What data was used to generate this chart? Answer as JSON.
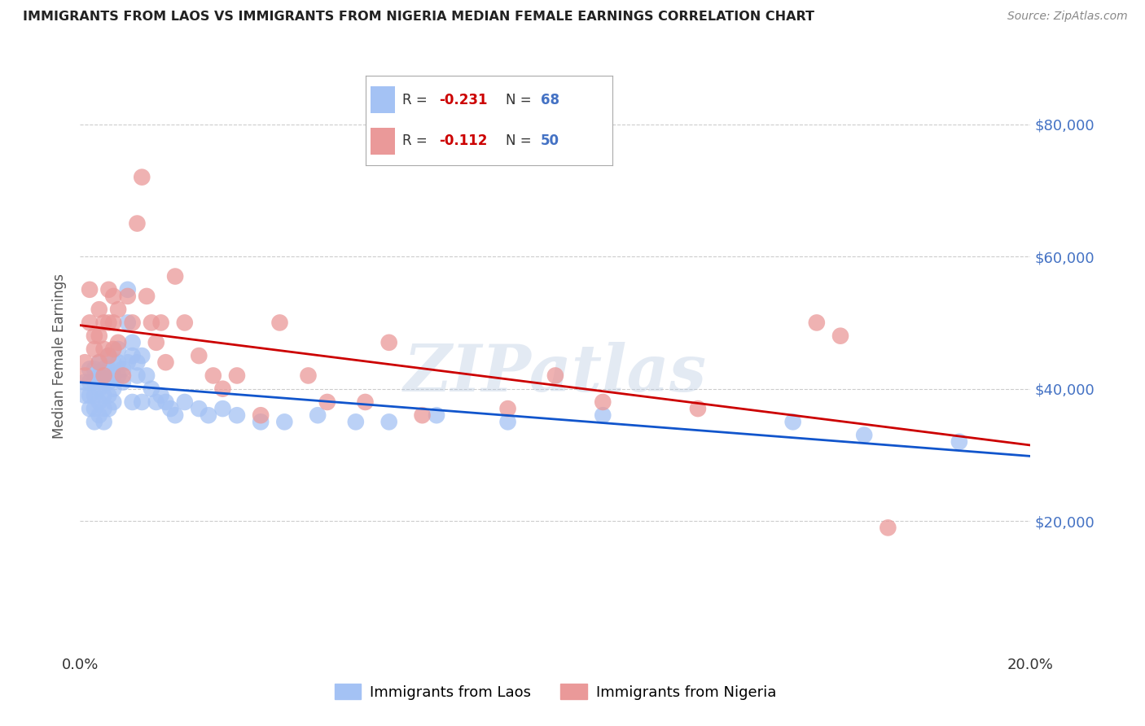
{
  "title": "IMMIGRANTS FROM LAOS VS IMMIGRANTS FROM NIGERIA MEDIAN FEMALE EARNINGS CORRELATION CHART",
  "source": "Source: ZipAtlas.com",
  "ylabel": "Median Female Earnings",
  "x_min": 0.0,
  "x_max": 0.2,
  "y_min": 0,
  "y_max": 90000,
  "yticks": [
    20000,
    40000,
    60000,
    80000
  ],
  "ytick_labels": [
    "$20,000",
    "$40,000",
    "$60,000",
    "$80,000"
  ],
  "xticks": [
    0.0,
    0.05,
    0.1,
    0.15,
    0.2
  ],
  "xtick_labels": [
    "0.0%",
    "",
    "",
    "",
    "20.0%"
  ],
  "laos_color": "#a4c2f4",
  "nigeria_color": "#ea9999",
  "laos_line_color": "#1155cc",
  "nigeria_line_color": "#cc0000",
  "laos_R": -0.231,
  "laos_N": 68,
  "nigeria_R": -0.112,
  "nigeria_N": 50,
  "legend_label_laos": "Immigrants from Laos",
  "legend_label_nigeria": "Immigrants from Nigeria",
  "watermark": "ZIPatlas",
  "laos_x": [
    0.001,
    0.001,
    0.002,
    0.002,
    0.002,
    0.002,
    0.003,
    0.003,
    0.003,
    0.003,
    0.003,
    0.004,
    0.004,
    0.004,
    0.004,
    0.004,
    0.005,
    0.005,
    0.005,
    0.005,
    0.005,
    0.006,
    0.006,
    0.006,
    0.006,
    0.006,
    0.007,
    0.007,
    0.007,
    0.007,
    0.008,
    0.008,
    0.008,
    0.009,
    0.009,
    0.01,
    0.01,
    0.01,
    0.011,
    0.011,
    0.011,
    0.012,
    0.012,
    0.013,
    0.013,
    0.014,
    0.015,
    0.016,
    0.017,
    0.018,
    0.019,
    0.02,
    0.022,
    0.025,
    0.027,
    0.03,
    0.033,
    0.038,
    0.043,
    0.05,
    0.058,
    0.065,
    0.075,
    0.09,
    0.11,
    0.15,
    0.165,
    0.185
  ],
  "laos_y": [
    41000,
    39000,
    43000,
    41000,
    39000,
    37000,
    43000,
    41000,
    39000,
    37000,
    35000,
    44000,
    42000,
    40000,
    38000,
    36000,
    43000,
    41000,
    39000,
    37000,
    35000,
    45000,
    43000,
    41000,
    39000,
    37000,
    44000,
    42000,
    40000,
    38000,
    46000,
    44000,
    42000,
    43000,
    41000,
    55000,
    50000,
    44000,
    47000,
    45000,
    38000,
    44000,
    42000,
    45000,
    38000,
    42000,
    40000,
    38000,
    39000,
    38000,
    37000,
    36000,
    38000,
    37000,
    36000,
    37000,
    36000,
    35000,
    35000,
    36000,
    35000,
    35000,
    36000,
    35000,
    36000,
    35000,
    33000,
    32000
  ],
  "nigeria_x": [
    0.001,
    0.001,
    0.002,
    0.002,
    0.003,
    0.003,
    0.004,
    0.004,
    0.004,
    0.005,
    0.005,
    0.005,
    0.006,
    0.006,
    0.006,
    0.007,
    0.007,
    0.007,
    0.008,
    0.008,
    0.009,
    0.01,
    0.011,
    0.012,
    0.013,
    0.014,
    0.015,
    0.016,
    0.017,
    0.018,
    0.02,
    0.022,
    0.025,
    0.028,
    0.03,
    0.033,
    0.038,
    0.042,
    0.048,
    0.052,
    0.06,
    0.065,
    0.072,
    0.09,
    0.1,
    0.11,
    0.13,
    0.155,
    0.16,
    0.17
  ],
  "nigeria_y": [
    44000,
    42000,
    55000,
    50000,
    48000,
    46000,
    52000,
    48000,
    44000,
    50000,
    46000,
    42000,
    55000,
    50000,
    45000,
    54000,
    50000,
    46000,
    52000,
    47000,
    42000,
    54000,
    50000,
    65000,
    72000,
    54000,
    50000,
    47000,
    50000,
    44000,
    57000,
    50000,
    45000,
    42000,
    40000,
    42000,
    36000,
    50000,
    42000,
    38000,
    38000,
    47000,
    36000,
    37000,
    42000,
    38000,
    37000,
    50000,
    48000,
    19000
  ]
}
